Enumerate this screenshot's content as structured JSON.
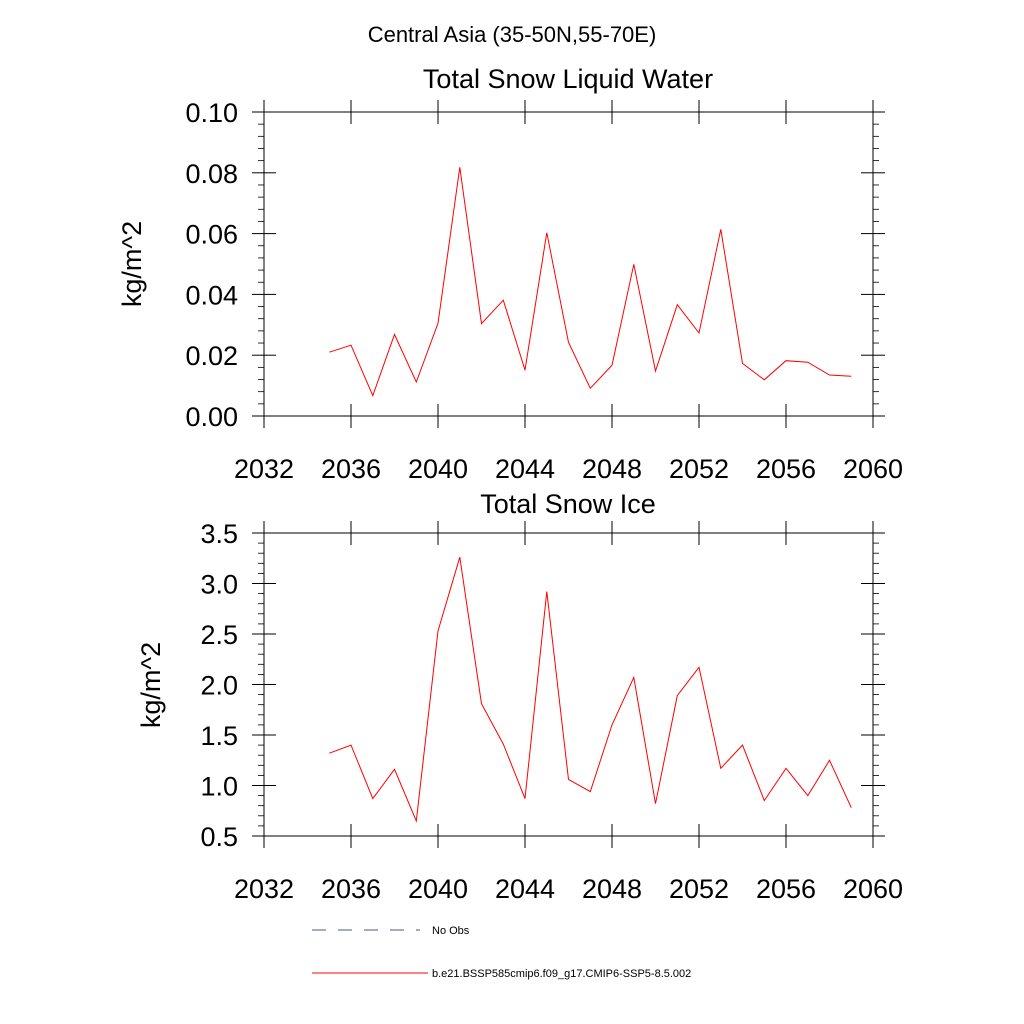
{
  "figure": {
    "super_title": "Central Asia (35-50N,55-70E)"
  },
  "legend": {
    "items": [
      {
        "label": "No Obs",
        "color": "#4b5a8c",
        "dash": "dashed"
      },
      {
        "label": "b.e21.BSSP585cmip6.f09_g17.CMIP6-SSP5-8.5.002",
        "color": "#ff0000",
        "dash": "solid"
      }
    ]
  },
  "chart_data": [
    {
      "type": "line",
      "title": "Total Snow Liquid Water",
      "xlabel": "",
      "ylabel": "kg/m^2",
      "xlim": [
        2032,
        2060
      ],
      "ylim": [
        0.0,
        0.1
      ],
      "x_ticks": [
        2032,
        2036,
        2040,
        2044,
        2048,
        2052,
        2056,
        2060
      ],
      "x_tick_labels": [
        "2032",
        "2036",
        "2040",
        "2044",
        "2048",
        "2052",
        "2056",
        "2060"
      ],
      "y_ticks": [
        0.0,
        0.02,
        0.04,
        0.06,
        0.08,
        0.1
      ],
      "y_tick_labels": [
        "0.00",
        "0.02",
        "0.04",
        "0.06",
        "0.08",
        "0.10"
      ],
      "grid": false,
      "series": [
        {
          "name": "b.e21.BSSP585cmip6.f09_g17.CMIP6-SSP5-8.5.002",
          "color": "#ff0000",
          "x": [
            2035,
            2036,
            2037,
            2038,
            2039,
            2040,
            2041,
            2042,
            2043,
            2044,
            2045,
            2046,
            2047,
            2048,
            2049,
            2050,
            2051,
            2052,
            2053,
            2054,
            2055,
            2056,
            2057,
            2058,
            2059
          ],
          "y": [
            0.021,
            0.0233,
            0.0067,
            0.0268,
            0.0112,
            0.0305,
            0.0818,
            0.0304,
            0.0381,
            0.0151,
            0.0603,
            0.0242,
            0.0091,
            0.0167,
            0.0499,
            0.0148,
            0.0366,
            0.0273,
            0.0614,
            0.0173,
            0.0119,
            0.0182,
            0.0177,
            0.0135,
            0.0131
          ]
        }
      ]
    },
    {
      "type": "line",
      "title": "Total Snow Ice",
      "xlabel": "",
      "ylabel": "kg/m^2",
      "xlim": [
        2032,
        2060
      ],
      "ylim": [
        0.5,
        3.5
      ],
      "x_ticks": [
        2032,
        2036,
        2040,
        2044,
        2048,
        2052,
        2056,
        2060
      ],
      "x_tick_labels": [
        "2032",
        "2036",
        "2040",
        "2044",
        "2048",
        "2052",
        "2056",
        "2060"
      ],
      "y_ticks": [
        0.5,
        1.0,
        1.5,
        2.0,
        2.5,
        3.0,
        3.5
      ],
      "y_tick_labels": [
        "0.5",
        "1.0",
        "1.5",
        "2.0",
        "2.5",
        "3.0",
        "3.5"
      ],
      "grid": false,
      "series": [
        {
          "name": "b.e21.BSSP585cmip6.f09_g17.CMIP6-SSP5-8.5.002",
          "color": "#ff0000",
          "x": [
            2035,
            2036,
            2037,
            2038,
            2039,
            2040,
            2041,
            2042,
            2043,
            2044,
            2045,
            2046,
            2047,
            2048,
            2049,
            2050,
            2051,
            2052,
            2053,
            2054,
            2055,
            2056,
            2057,
            2058,
            2059
          ],
          "y": [
            1.32,
            1.4,
            0.87,
            1.16,
            0.65,
            2.53,
            3.26,
            1.81,
            1.41,
            0.87,
            2.92,
            1.06,
            0.94,
            1.6,
            2.07,
            0.82,
            1.89,
            2.17,
            1.17,
            1.4,
            0.85,
            1.17,
            0.9,
            1.25,
            0.78
          ]
        }
      ]
    }
  ]
}
